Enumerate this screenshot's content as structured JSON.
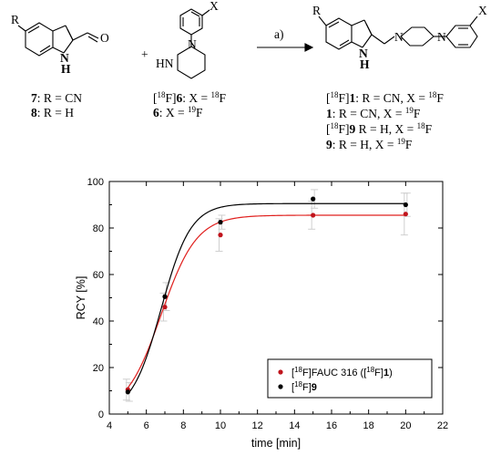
{
  "scheme": {
    "reagent_label": "a)",
    "compound_labels": {
      "r_left": "R",
      "nh_left": "N",
      "h_left": "H",
      "o_ald": "O",
      "plus": "+",
      "x_pip": "X",
      "hn_pip": "HN",
      "n_pip": "N",
      "r_prod": "R",
      "nh_prod": "N",
      "h_prod": "H",
      "x_prod": "X",
      "n_prod_a": "N",
      "n_prod_b": "N"
    },
    "reactant_list": [
      {
        "num": "7",
        "text": ": R = CN"
      },
      {
        "num": "8",
        "text": ": R = H"
      }
    ],
    "piperazine_list": [
      {
        "prefix": "[",
        "iso": "18",
        "mid": "F]",
        "num": "6",
        "text": ":   X = ",
        "x_iso": "18",
        "x_el": "F"
      },
      {
        "prefix": "",
        "iso": "",
        "mid": "",
        "num": "6",
        "text": ":         X = ",
        "x_iso": "19",
        "x_el": "F"
      }
    ],
    "product_list": [
      {
        "prefix": "[",
        "iso": "18",
        "mid": "F]",
        "num": "1",
        "text": ":   R = CN, X = ",
        "x_iso": "18",
        "x_el": "F"
      },
      {
        "prefix": "",
        "iso": "",
        "mid": "",
        "num": "1",
        "text": ":         R = CN, X = ",
        "x_iso": "19",
        "x_el": "F"
      },
      {
        "prefix": "[",
        "iso": "18",
        "mid": "F]",
        "num": "9",
        "text": "    R = H, X = ",
        "x_iso": "18",
        "x_el": "F"
      },
      {
        "prefix": "",
        "iso": "",
        "mid": "",
        "num": "9",
        "text": ":         R = H, X = ",
        "x_iso": "19",
        "x_el": "F"
      }
    ]
  },
  "chart_data": {
    "type": "scatter",
    "xlabel": "time [min]",
    "ylabel": "RCY [%]",
    "xlim": [
      4,
      22
    ],
    "ylim": [
      0,
      100
    ],
    "xticks": [
      "4",
      "6",
      "8",
      "10",
      "12",
      "14",
      "16",
      "18",
      "20",
      "22"
    ],
    "yticks": [
      "0",
      "20",
      "40",
      "60",
      "80",
      "100"
    ],
    "grid": false,
    "legend_position": "bottom-right",
    "series": [
      {
        "name_parts": {
          "pre": "[",
          "sup": "18",
          "post": "F]FAUC 316 ([",
          "sup2": "18",
          "post2": "F]",
          "bold": "1",
          "end": ")"
        },
        "color": "#c0141c",
        "curve_color": "#e0201e",
        "x": [
          5,
          7,
          10,
          15,
          20
        ],
        "y": [
          10.5,
          46,
          77,
          85.5,
          86
        ],
        "err": [
          4.5,
          6,
          7,
          6,
          9
        ],
        "fit": {
          "plateau": 85.5,
          "k": 0.55,
          "t0": 5.85
        }
      },
      {
        "name_parts": {
          "pre": "[",
          "sup": "18",
          "post": "F]",
          "bold": "9",
          "end": ""
        },
        "color": "#000000",
        "curve_color": "#000000",
        "x": [
          5,
          7,
          10,
          15,
          20
        ],
        "y": [
          9.5,
          50.5,
          82.5,
          92.5,
          90
        ],
        "err": [
          4,
          6,
          3,
          4,
          5
        ],
        "fit": {
          "plateau": 90.5,
          "k": 0.66,
          "t0": 5.85
        }
      }
    ],
    "error_bar_color": "#cfcfcf"
  }
}
